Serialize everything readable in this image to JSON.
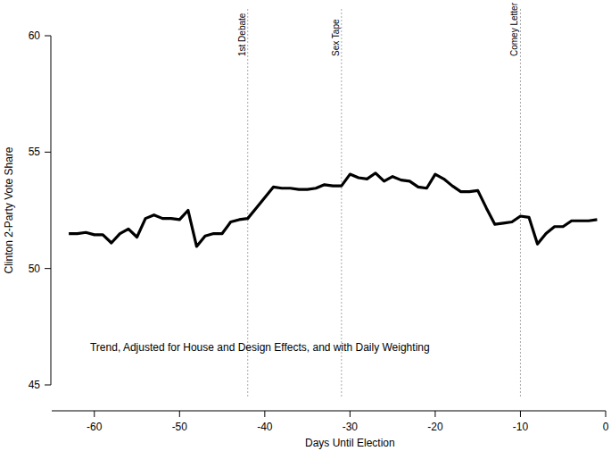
{
  "chart_data": {
    "type": "line",
    "x_label": "Days Until Election",
    "y_label": "Clinton 2-Party Vote Share",
    "annotation_text": "Trend, Adjusted for House and Design Effects, and with Daily Weighting",
    "x": [
      -63,
      -62,
      -61,
      -60,
      -59,
      -58,
      -57,
      -56,
      -55,
      -54,
      -53,
      -52,
      -51,
      -50,
      -49,
      -48,
      -47,
      -46,
      -45,
      -44,
      -43,
      -42,
      -41,
      -40,
      -39,
      -38,
      -37,
      -36,
      -35,
      -34,
      -33,
      -32,
      -31,
      -30,
      -29,
      -28,
      -27,
      -26,
      -25,
      -24,
      -23,
      -22,
      -21,
      -20,
      -19,
      -18,
      -17,
      -16,
      -15,
      -14,
      -13,
      -12,
      -11,
      -10,
      -9,
      -8,
      -7,
      -6,
      -5,
      -4,
      -3,
      -2,
      -1
    ],
    "values": [
      51.5,
      51.5,
      51.55,
      51.45,
      51.45,
      51.1,
      51.5,
      51.7,
      51.35,
      52.15,
      52.3,
      52.15,
      52.15,
      52.1,
      52.5,
      50.95,
      51.4,
      51.5,
      51.5,
      52.0,
      52.1,
      52.15,
      52.6,
      53.05,
      53.5,
      53.45,
      53.45,
      53.4,
      53.4,
      53.45,
      53.6,
      53.55,
      53.55,
      54.05,
      53.9,
      53.85,
      54.1,
      53.75,
      53.95,
      53.8,
      53.75,
      53.5,
      53.45,
      54.05,
      53.85,
      53.55,
      53.3,
      53.3,
      53.35,
      52.6,
      51.9,
      51.95,
      52.0,
      52.25,
      52.2,
      51.05,
      51.5,
      51.8,
      51.8,
      52.05,
      52.05,
      52.05,
      52.1
    ],
    "color": "#000000",
    "events": [
      {
        "x": -42,
        "label": "1st Debate"
      },
      {
        "x": -31,
        "label": "Sex Tape"
      },
      {
        "x": -10,
        "label": "Comey Letter"
      }
    ],
    "xlim": [
      -65,
      0
    ],
    "ylim": [
      45,
      60
    ],
    "xticks": [
      -60,
      -50,
      -40,
      -30,
      -20,
      -10,
      0
    ],
    "yticks": [
      45,
      50,
      55,
      60
    ],
    "grid": false
  }
}
